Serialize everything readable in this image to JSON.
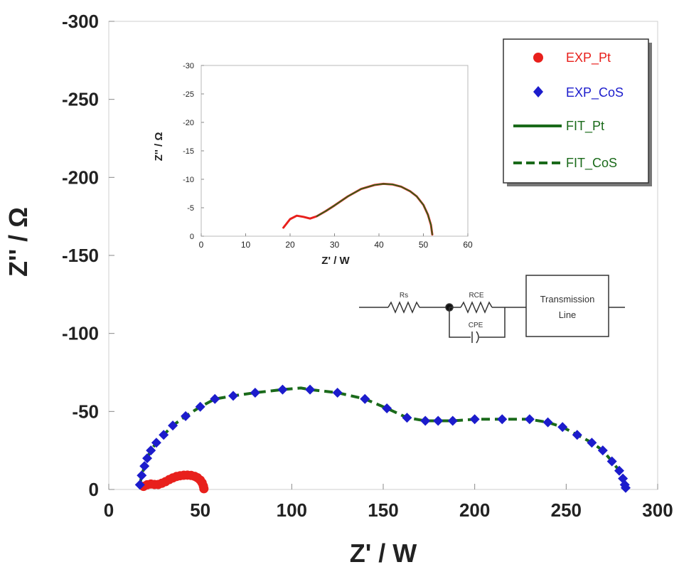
{
  "chart_data": {
    "type": "scatter",
    "xlabel": "Z' / W",
    "ylabel": "Z'' / Ω",
    "xlim": [
      0,
      300
    ],
    "ylim": [
      0,
      -300
    ],
    "y_inverted": true,
    "grid": false,
    "legend_position": "top-right",
    "x_ticks": [
      0,
      50,
      100,
      150,
      200,
      250,
      300
    ],
    "y_ticks": [
      0,
      -50,
      -100,
      -150,
      -200,
      -250,
      -300
    ],
    "x_tick_labels": [
      "0",
      "50",
      "100",
      "150",
      "200",
      "250",
      "300"
    ],
    "y_tick_labels": [
      "0",
      "-50",
      "-100",
      "-150",
      "-200",
      "-250",
      "-300"
    ],
    "series": [
      {
        "name": "EXP_Pt",
        "kind": "marker",
        "marker": "circle",
        "color": "#e8201c",
        "x": [
          19,
          21,
          23,
          25,
          27,
          29,
          31,
          33,
          35,
          37,
          39,
          41,
          43,
          45,
          47,
          48.5,
          50,
          51,
          51.7,
          52
        ],
        "y": [
          -2,
          -3,
          -3.5,
          -3.2,
          -3.2,
          -4,
          -5,
          -6.3,
          -7.4,
          -8.3,
          -8.8,
          -9.1,
          -9.2,
          -9.0,
          -8.4,
          -7.5,
          -6.0,
          -4.3,
          -2.2,
          -0.5
        ]
      },
      {
        "name": "EXP_CoS",
        "kind": "marker",
        "marker": "diamond",
        "color": "#1c1ccc",
        "x": [
          17,
          18,
          19.5,
          21,
          23,
          26,
          30,
          35,
          42,
          50,
          58,
          68,
          80,
          95,
          110,
          125,
          140,
          152,
          163,
          173,
          180,
          188,
          200,
          215,
          230,
          240,
          248,
          256,
          264,
          270,
          275,
          279,
          281,
          282,
          282.5
        ],
        "y": [
          -3,
          -9,
          -15,
          -20,
          -25,
          -30,
          -35,
          -41,
          -47,
          -53,
          -58,
          -60,
          -62,
          -64,
          -64,
          -62,
          -58,
          -52,
          -46,
          -44,
          -44,
          -44,
          -45,
          -45,
          -45,
          -43,
          -40,
          -35,
          -30,
          -25,
          -18,
          -12,
          -7,
          -3,
          -1
        ]
      },
      {
        "name": "FIT_Pt",
        "kind": "line",
        "dash": "solid",
        "color": "#1a6a1a",
        "x": [
          19,
          22,
          25,
          28,
          31,
          34,
          37,
          40,
          43,
          46,
          48.5,
          50.5,
          51.7,
          52
        ],
        "y": [
          -2,
          -3.2,
          -3.2,
          -3.6,
          -5,
          -6.8,
          -8.3,
          -9.1,
          -9.2,
          -8.7,
          -7.5,
          -5.2,
          -2.5,
          -0.5
        ]
      },
      {
        "name": "FIT_CoS",
        "kind": "line",
        "dash": "dashed",
        "color": "#1a6a1a",
        "x": [
          17,
          18,
          19.5,
          21,
          23,
          26,
          30,
          35,
          42,
          50,
          58,
          68,
          80,
          95,
          105,
          110,
          125,
          140,
          152,
          163,
          173,
          180,
          188,
          200,
          215,
          230,
          240,
          248,
          256,
          264,
          270,
          275,
          279,
          281,
          282,
          282.5
        ],
        "y": [
          -3,
          -9,
          -15,
          -20,
          -25,
          -30,
          -35,
          -41,
          -47,
          -53,
          -58,
          -60,
          -62,
          -64,
          -65,
          -64,
          -62,
          -58,
          -52,
          -46,
          -44,
          -44,
          -44,
          -45,
          -45,
          -45,
          -43,
          -40,
          -35,
          -30,
          -25,
          -18,
          -12,
          -7,
          -3,
          -1
        ]
      }
    ],
    "inset": {
      "type": "line",
      "xlabel": "Z' / W",
      "ylabel": "Z'' / Ω",
      "xlim": [
        0,
        60
      ],
      "ylim": [
        0,
        -30
      ],
      "x_ticks": [
        0,
        10,
        20,
        30,
        40,
        50,
        60
      ],
      "y_ticks": [
        0,
        -5,
        -10,
        -15,
        -20,
        -25,
        -30
      ],
      "x_tick_labels": [
        "0",
        "10",
        "20",
        "30",
        "40",
        "50",
        "60"
      ],
      "y_tick_labels": [
        "0",
        "-5",
        "-10",
        "-15",
        "-20",
        "-25",
        "-30"
      ],
      "series": [
        {
          "name": "EXP_Pt",
          "color": "#e8201c",
          "x": [
            18.5,
            20,
            21.5,
            23,
            24.5,
            26,
            28,
            30,
            33,
            36,
            39,
            41,
            43,
            45,
            47,
            48.5,
            50,
            51,
            51.7,
            52
          ],
          "y": [
            -1.5,
            -3.0,
            -3.6,
            -3.4,
            -3.1,
            -3.5,
            -4.4,
            -5.4,
            -7.0,
            -8.3,
            -9.0,
            -9.2,
            -9.1,
            -8.7,
            -7.9,
            -7.0,
            -5.5,
            -3.8,
            -2.0,
            -0.3
          ]
        },
        {
          "name": "FIT_Pt",
          "color": "#1a6a1a",
          "x": [
            26,
            28,
            30,
            33,
            36,
            39,
            41,
            43,
            45,
            47,
            48.5,
            50,
            51,
            51.7,
            52
          ],
          "y": [
            -3.5,
            -4.4,
            -5.4,
            -7.0,
            -8.3,
            -9.0,
            -9.2,
            -9.1,
            -8.7,
            -7.9,
            -7.0,
            -5.5,
            -3.8,
            -2.0,
            -0.3
          ]
        }
      ]
    }
  },
  "legend": {
    "entries": [
      {
        "label": "EXP_Pt",
        "color": "#e8201c"
      },
      {
        "label": "EXP_CoS",
        "color": "#1c1ccc"
      },
      {
        "label": "FIT_Pt",
        "color": "#1a6a1a"
      },
      {
        "label": "FIT_CoS",
        "color": "#1a6a1a"
      }
    ]
  },
  "circuit": {
    "rs_label": "Rs",
    "rce_label": "RCE",
    "cpe_label": "CPE",
    "box_line1": "Transmission",
    "box_line2": "Line"
  }
}
